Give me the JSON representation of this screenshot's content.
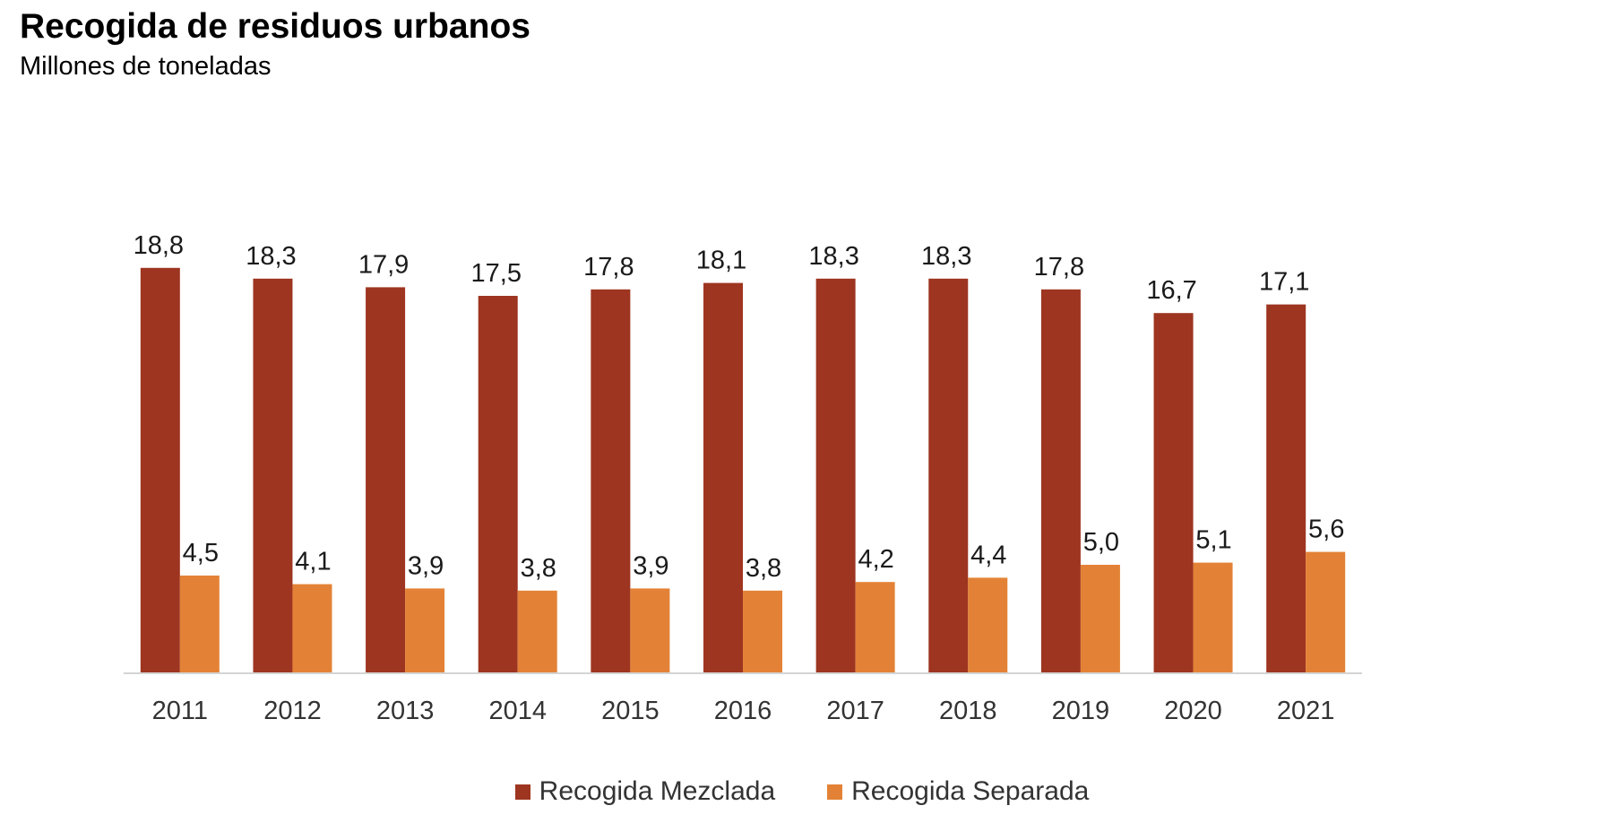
{
  "chart_data": {
    "type": "bar",
    "title": "Recogida de residuos urbanos",
    "subtitle": "Millones de toneladas",
    "xlabel": "",
    "ylabel": "",
    "ylim": [
      0,
      20
    ],
    "grid": false,
    "legend_position": "bottom",
    "categories": [
      "2011",
      "2012",
      "2013",
      "2014",
      "2015",
      "2016",
      "2017",
      "2018",
      "2019",
      "2020",
      "2021"
    ],
    "series": [
      {
        "name": "Recogida Mezclada",
        "color": "#9e3520",
        "values": [
          18.8,
          18.3,
          17.9,
          17.5,
          17.8,
          18.1,
          18.3,
          18.3,
          17.8,
          16.7,
          17.1
        ],
        "labels": [
          "18,8",
          "18,3",
          "17,9",
          "17,5",
          "17,8",
          "18,1",
          "18,3",
          "18,3",
          "17,8",
          "16,7",
          "17,1"
        ]
      },
      {
        "name": "Recogida Separada",
        "color": "#e38236",
        "values": [
          4.5,
          4.1,
          3.9,
          3.8,
          3.9,
          3.8,
          4.2,
          4.4,
          5.0,
          5.1,
          5.6
        ],
        "labels": [
          "4,5",
          "4,1",
          "3,9",
          "3,8",
          "3,9",
          "3,8",
          "4,2",
          "4,4",
          "5,0",
          "5,1",
          "5,6"
        ]
      }
    ]
  }
}
